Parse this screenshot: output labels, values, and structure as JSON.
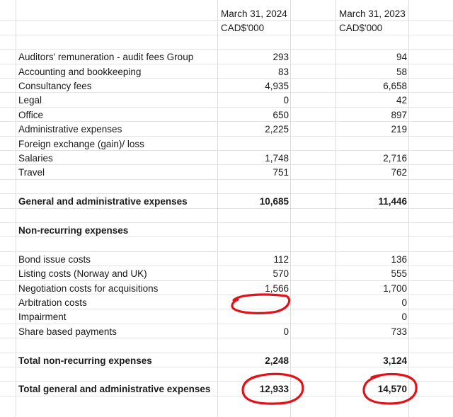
{
  "header": {
    "col_2024_date": "March 31, 2024",
    "col_2024_unit": "CAD$'000",
    "col_2023_date": "March 31, 2023",
    "col_2023_unit": "CAD$'000"
  },
  "rows": [
    {
      "label": "Auditors' remuneration - audit fees Group",
      "v2024": "293",
      "v2023": "94"
    },
    {
      "label": "Accounting and bookkeeping",
      "v2024": "83",
      "v2023": "58"
    },
    {
      "label": "Consultancy fees",
      "v2024": "4,935",
      "v2023": "6,658"
    },
    {
      "label": "Legal",
      "v2024": "0",
      "v2023": "42"
    },
    {
      "label": "Office",
      "v2024": "650",
      "v2023": "897"
    },
    {
      "label": "Administrative expenses",
      "v2024": "2,225",
      "v2023": "219"
    },
    {
      "label": "Foreign exchange (gain)/ loss",
      "v2024": "",
      "v2023": ""
    },
    {
      "label": "Salaries",
      "v2024": "1,748",
      "v2023": "2,716"
    },
    {
      "label": "Travel",
      "v2024": "751",
      "v2023": "762"
    },
    {
      "label": "",
      "v2024": "",
      "v2023": ""
    },
    {
      "label": "General and administrative expenses",
      "v2024": "10,685",
      "v2023": "11,446"
    },
    {
      "label": "",
      "v2024": "",
      "v2023": ""
    },
    {
      "label": "Non-recurring expenses",
      "v2024": "",
      "v2023": ""
    },
    {
      "label": "",
      "v2024": "",
      "v2023": ""
    },
    {
      "label": "Bond issue costs",
      "v2024": "112",
      "v2023": "136"
    },
    {
      "label": "Listing costs (Norway and UK)",
      "v2024": "570",
      "v2023": "555"
    },
    {
      "label": "Negotiation costs for acquisitions",
      "v2024": "1,566",
      "v2023": "1,700"
    },
    {
      "label": "Arbitration costs",
      "v2024": "",
      "v2023": "0"
    },
    {
      "label": "Impairment",
      "v2024": "",
      "v2023": "0"
    },
    {
      "label": "Share based payments",
      "v2024": "0",
      "v2023": "733"
    },
    {
      "label": "",
      "v2024": "",
      "v2023": ""
    },
    {
      "label": "Total non-recurring expenses",
      "v2024": "2,248",
      "v2023": "3,124"
    },
    {
      "label": "",
      "v2024": "",
      "v2023": ""
    },
    {
      "label": "Total general and administrative expenses",
      "v2024": "12,933",
      "v2023": "14,570"
    }
  ],
  "annotation_color": "#e0131b"
}
